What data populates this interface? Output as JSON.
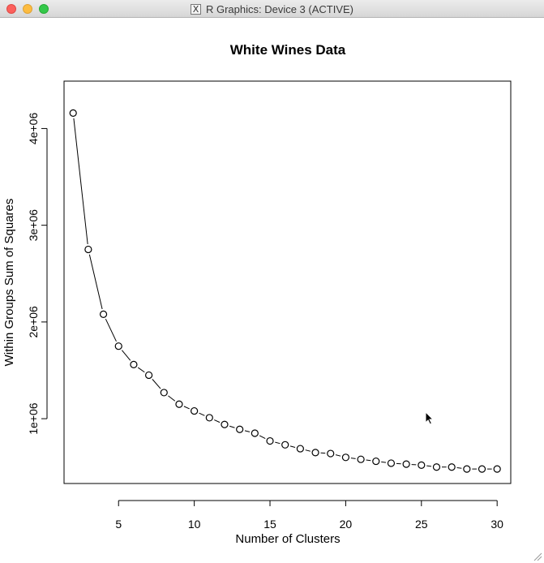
{
  "window": {
    "title": "R Graphics: Device 3 (ACTIVE)",
    "title_icon": "x11-icon"
  },
  "chart_data": {
    "type": "line",
    "line_style": "points-and-lines",
    "title": "White Wines Data",
    "xlabel": "Number of Clusters",
    "ylabel": "Within Groups Sum of Squares",
    "x": [
      2,
      3,
      4,
      5,
      6,
      7,
      8,
      9,
      10,
      11,
      12,
      13,
      14,
      15,
      16,
      17,
      18,
      19,
      20,
      21,
      22,
      23,
      24,
      25,
      26,
      27,
      28,
      29,
      30
    ],
    "values": [
      4160000,
      2750000,
      2080000,
      1750000,
      1560000,
      1450000,
      1270000,
      1150000,
      1080000,
      1010000,
      940000,
      890000,
      850000,
      770000,
      730000,
      690000,
      650000,
      640000,
      600000,
      580000,
      560000,
      540000,
      530000,
      520000,
      500000,
      500000,
      480000,
      480000,
      480000
    ],
    "xlim": [
      1.4,
      30.9
    ],
    "ylim": [
      330000,
      4490000
    ],
    "x_ticks": [
      5,
      10,
      15,
      20,
      25,
      30
    ],
    "x_tick_labels": [
      "5",
      "10",
      "15",
      "20",
      "25",
      "30"
    ],
    "y_ticks": [
      1000000,
      2000000,
      3000000,
      4000000
    ],
    "y_tick_labels": [
      "1e+06",
      "2e+06",
      "3e+06",
      "4e+06"
    ],
    "grid": false,
    "legend": "none",
    "colors": {
      "points": "#000000",
      "line": "#000000",
      "background": "#ffffff"
    }
  }
}
